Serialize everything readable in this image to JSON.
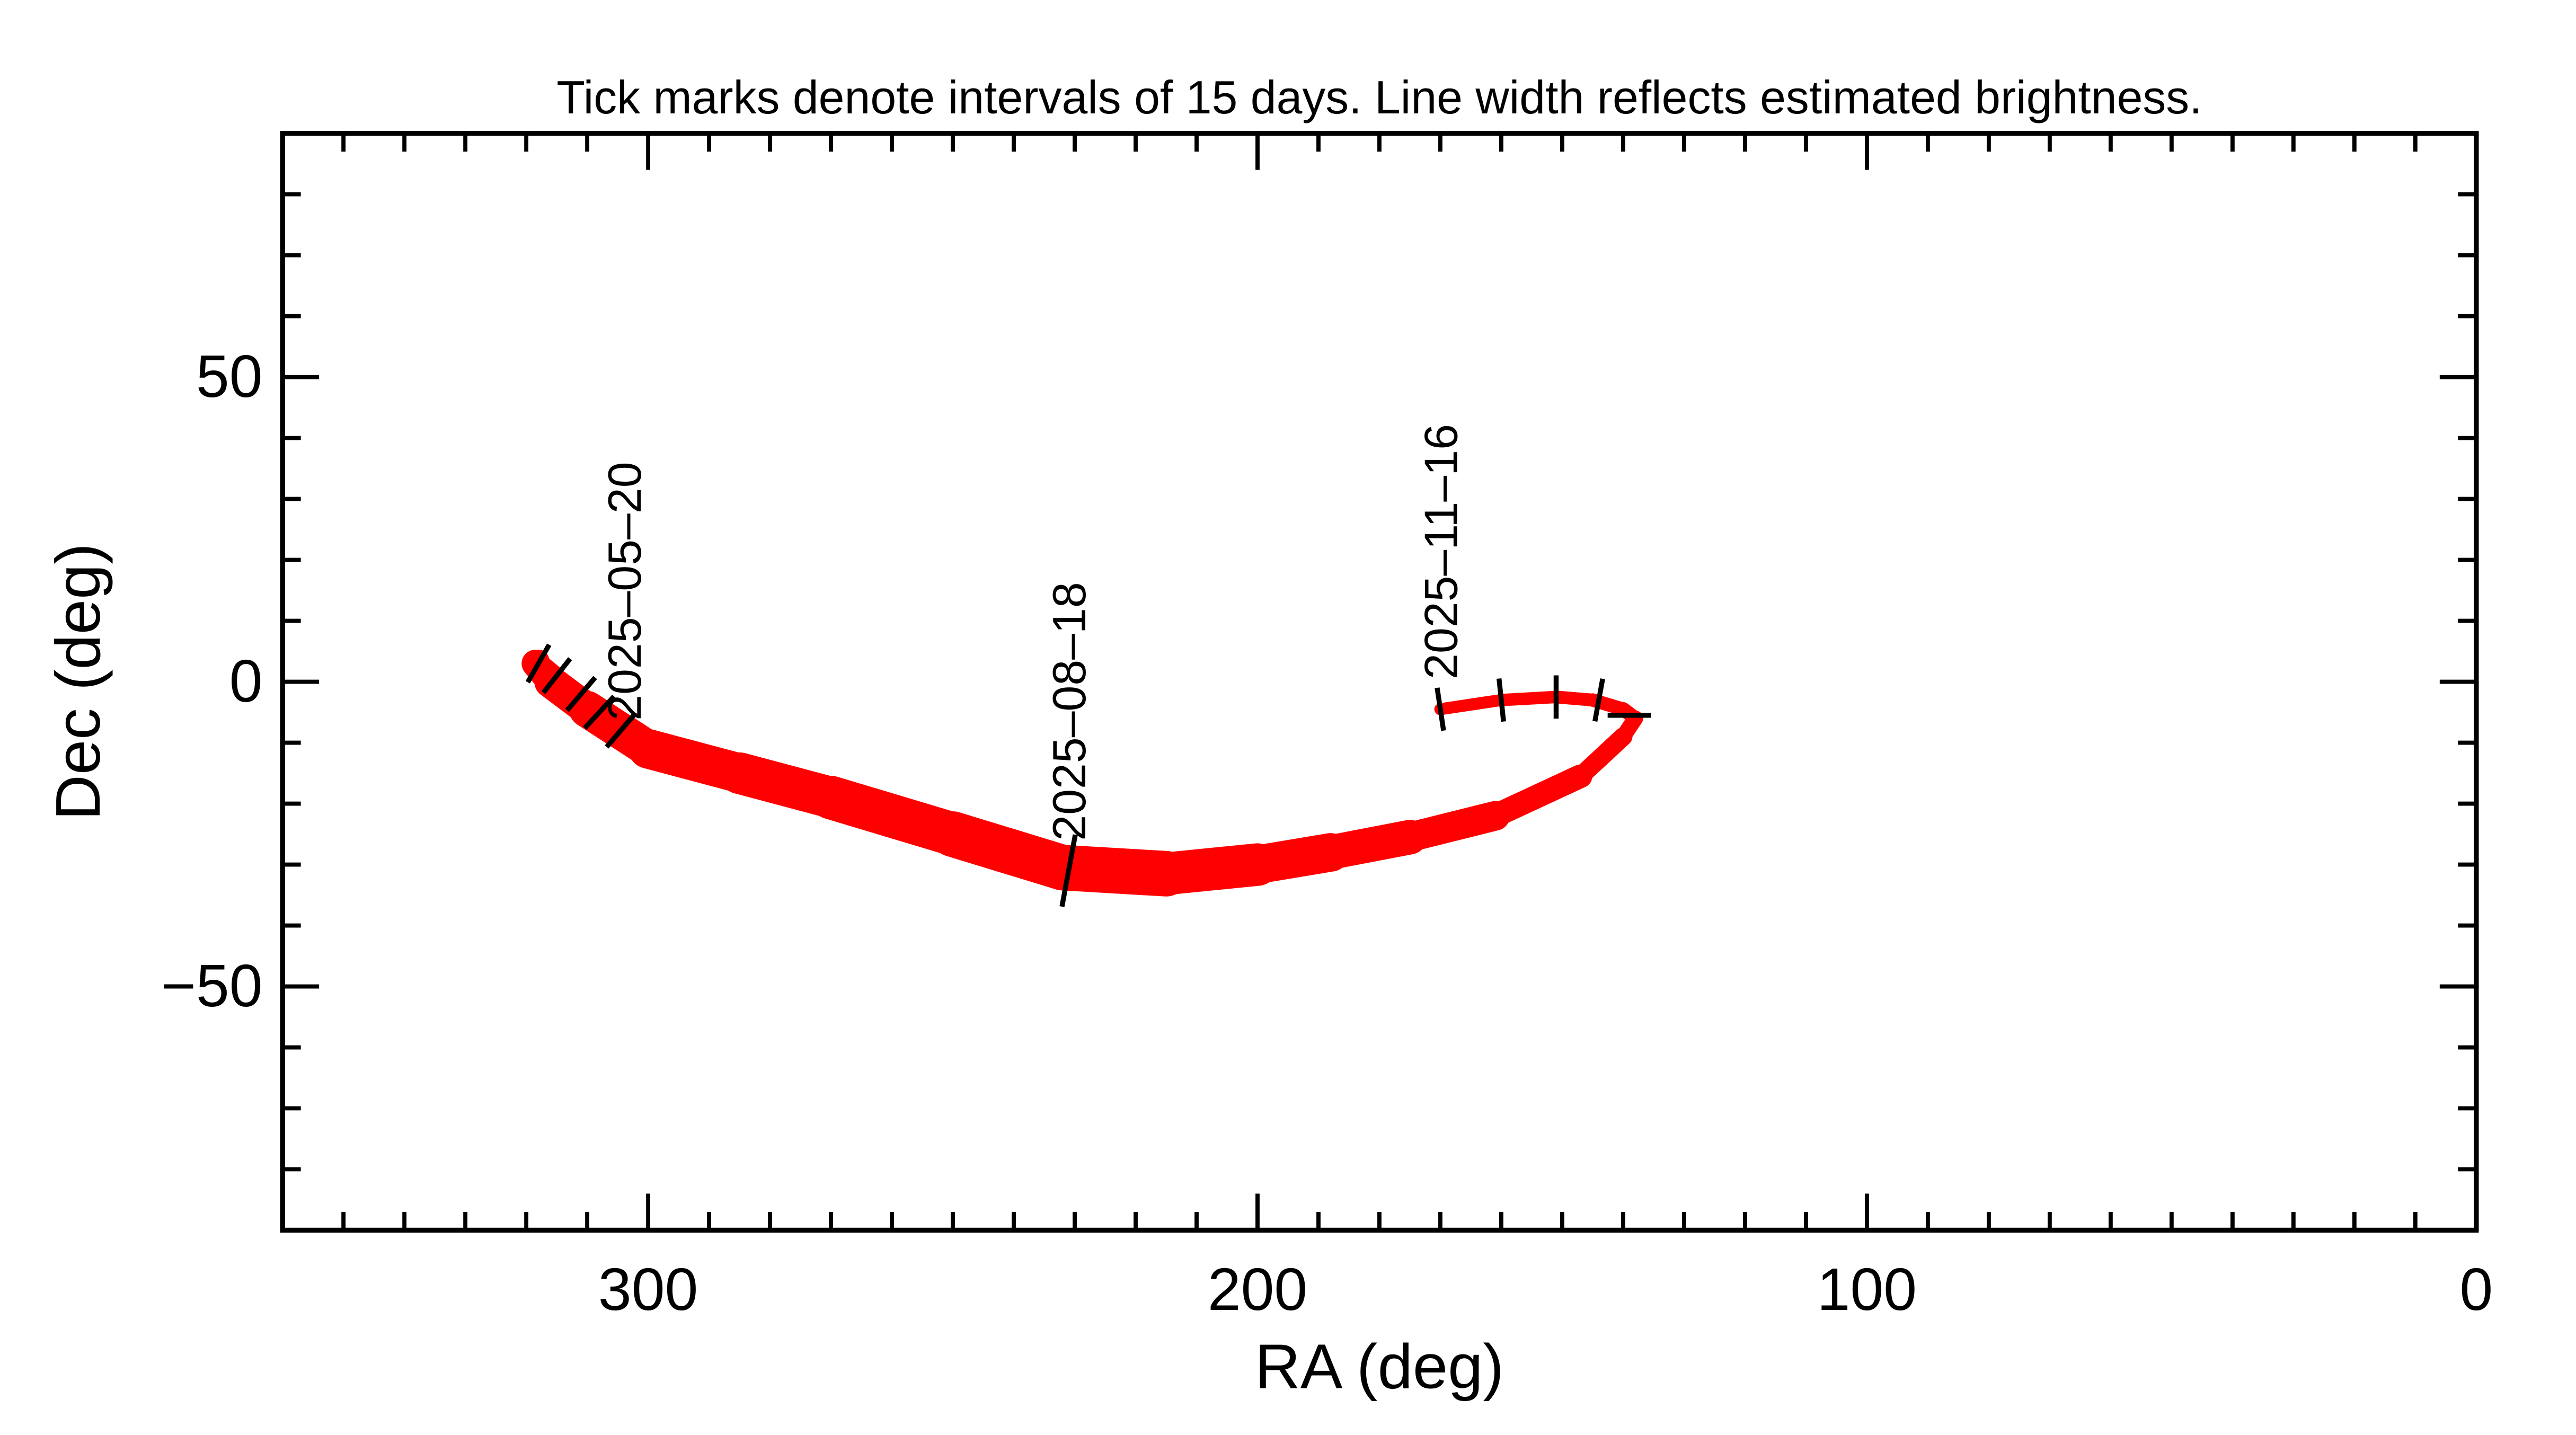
{
  "chart_data": {
    "type": "line",
    "title": "Tick marks denote intervals of 15 days.  Line width reflects estimated brightness.",
    "xlabel": "RA (deg)",
    "ylabel": "Dec (deg)",
    "xlim": [
      360,
      0
    ],
    "ylim": [
      -90,
      90
    ],
    "x_reversed": true,
    "x_major_ticks": [
      300,
      200,
      100,
      0
    ],
    "x_tick_labels": [
      "300",
      "200",
      "100",
      "0"
    ],
    "x_minor_step": 10,
    "y_major_ticks": [
      50,
      0,
      -50
    ],
    "y_tick_labels": [
      "50",
      "0",
      "−50"
    ],
    "y_minor_step": 10,
    "grid": false,
    "line_color": "#ff0000",
    "tick_color": "#000000",
    "track": {
      "ra": [
        304.5,
        308,
        311,
        315,
        318,
        318.5,
        316,
        310,
        300,
        285,
        270,
        250,
        232,
        215,
        200,
        188,
        175,
        161,
        147,
        140,
        138,
        140,
        145,
        151,
        160,
        170
      ],
      "dec": [
        -8,
        -5,
        -2,
        1,
        3.5,
        3,
        0,
        -4.5,
        -11,
        -15,
        -19,
        -25,
        -30.5,
        -31.5,
        -30,
        -28,
        -25.5,
        -22,
        -15.5,
        -9,
        -6,
        -4.5,
        -3,
        -2.5,
        -3,
        -4.5
      ],
      "relative_brightness": [
        0.12,
        0.14,
        0.16,
        0.2,
        0.3,
        0.45,
        0.6,
        0.7,
        0.8,
        0.85,
        0.9,
        0.95,
        1.0,
        0.95,
        0.85,
        0.75,
        0.65,
        0.5,
        0.35,
        0.25,
        0.2,
        0.18,
        0.16,
        0.15,
        0.14,
        0.13
      ]
    },
    "tick_marks": [
      {
        "ra": 318,
        "dec": 3
      },
      {
        "ra": 315,
        "dec": 1
      },
      {
        "ra": 311,
        "dec": -2
      },
      {
        "ra": 308,
        "dec": -5
      },
      {
        "ra": 304.5,
        "dec": -8
      },
      {
        "ra": 231,
        "dec": -31
      },
      {
        "ra": 170,
        "dec": -4.5
      },
      {
        "ra": 160,
        "dec": -3
      },
      {
        "ra": 151,
        "dec": -2.5
      },
      {
        "ra": 144,
        "dec": -3
      },
      {
        "ra": 139,
        "dec": -5.5
      }
    ],
    "date_labels": [
      {
        "text": "2025–05–20",
        "ra": 304.5,
        "dec": -8
      },
      {
        "text": "2025–08–18",
        "ra": 231,
        "dec": -31
      },
      {
        "text": "2025–11–16",
        "ra": 170,
        "dec": -4.5
      }
    ]
  }
}
